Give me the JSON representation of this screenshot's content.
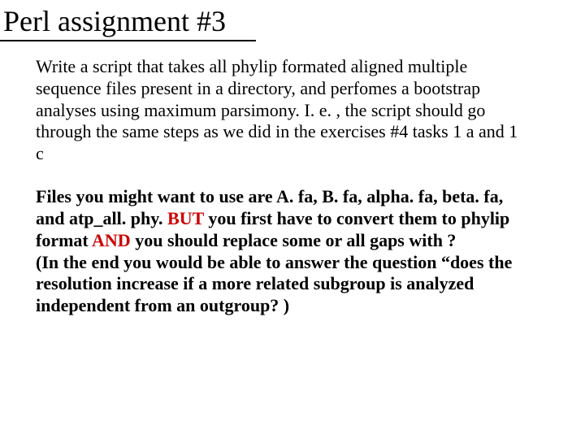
{
  "title": "Perl assignment #3",
  "paragraph1": "Write a script that takes all phylip formated aligned multiple sequence files present in a directory, and perfomes a bootstrap analyses using maximum parsimony. I. e. , the script should go through the same steps as we did in the exercises #4 tasks 1 a and 1 c",
  "p2_part1": "Files you might want to use are A. fa, B. fa, alpha. fa, beta. fa, and atp_all. phy.  ",
  "p2_but": "BUT",
  "p2_part2": " you first have to convert them to phylip format ",
  "p2_and": "AND",
  "p2_part3": " you should replace some or all gaps with ?",
  "p2_part4": "(In the end you would be able to answer the question “does the resolution increase if a more related subgroup is analyzed independent from an outgroup? )",
  "colors": {
    "background": "#ffffff",
    "text": "#000000",
    "accent": "#cc0000",
    "underline": "#000000"
  },
  "typography": {
    "title_fontsize": 36,
    "body_fontsize": 22,
    "font_family": "Times New Roman"
  }
}
